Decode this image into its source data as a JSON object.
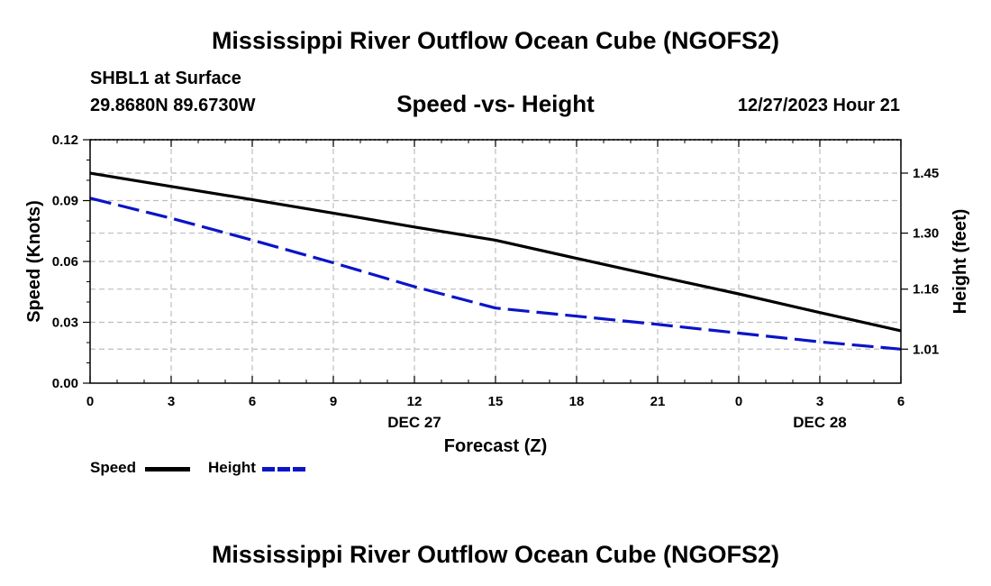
{
  "titles": {
    "main": "Mississippi River Outflow Ocean Cube (NGOFS2)",
    "bottom": "Mississippi River Outflow Ocean Cube (NGOFS2)",
    "station": "SHBL1 at Surface",
    "coords": "29.8680N  89.6730W",
    "plot": "Speed -vs- Height",
    "datetime": "12/27/2023 Hour 21"
  },
  "legend": {
    "speed_label": "Speed",
    "height_label": "Height"
  },
  "colors": {
    "speed": "#000000",
    "height": "#0a14c8",
    "grid": "#bdbdbd"
  },
  "chart_data": {
    "type": "line",
    "title": "Speed -vs- Height",
    "xlabel": "Forecast (Z)",
    "ylabel": "Speed (Knots)",
    "y2label": "Height (feet)",
    "x_ticks": [
      "0",
      "3",
      "6",
      "9",
      "12",
      "15",
      "18",
      "21",
      "0",
      "3",
      "6"
    ],
    "x_hours": [
      0,
      3,
      6,
      9,
      12,
      15,
      18,
      21,
      24,
      27,
      30
    ],
    "date_labels": [
      {
        "label": "DEC 27",
        "hour": 12
      },
      {
        "label": "DEC 28",
        "hour": 27
      }
    ],
    "xlim": [
      0,
      30
    ],
    "ylim": [
      0,
      0.12
    ],
    "y_ticks": [
      "0.00",
      "0.03",
      "0.06",
      "0.09",
      "0.12"
    ],
    "y2lim": [
      0.925,
      1.5334
    ],
    "y2_ticks": [
      "1.01",
      "1.16",
      "1.30",
      "1.45"
    ],
    "grid": true,
    "series": [
      {
        "name": "Speed",
        "axis": "left",
        "style": "solid",
        "x": [
          0,
          3,
          6,
          9,
          12,
          15,
          18,
          21,
          24,
          27,
          30
        ],
        "values": [
          0.1035,
          0.097,
          0.0905,
          0.0838,
          0.077,
          0.0705,
          0.0615,
          0.0527,
          0.044,
          0.0348,
          0.0258
        ]
      },
      {
        "name": "Height",
        "axis": "right",
        "style": "dashed",
        "x": [
          0,
          3,
          6,
          9,
          12,
          15,
          18,
          21,
          24,
          27,
          30
        ],
        "values": [
          1.3873,
          1.3371,
          1.2826,
          1.2258,
          1.1662,
          1.1128,
          1.0924,
          1.0719,
          1.05,
          1.0283,
          1.0099
        ]
      }
    ]
  }
}
